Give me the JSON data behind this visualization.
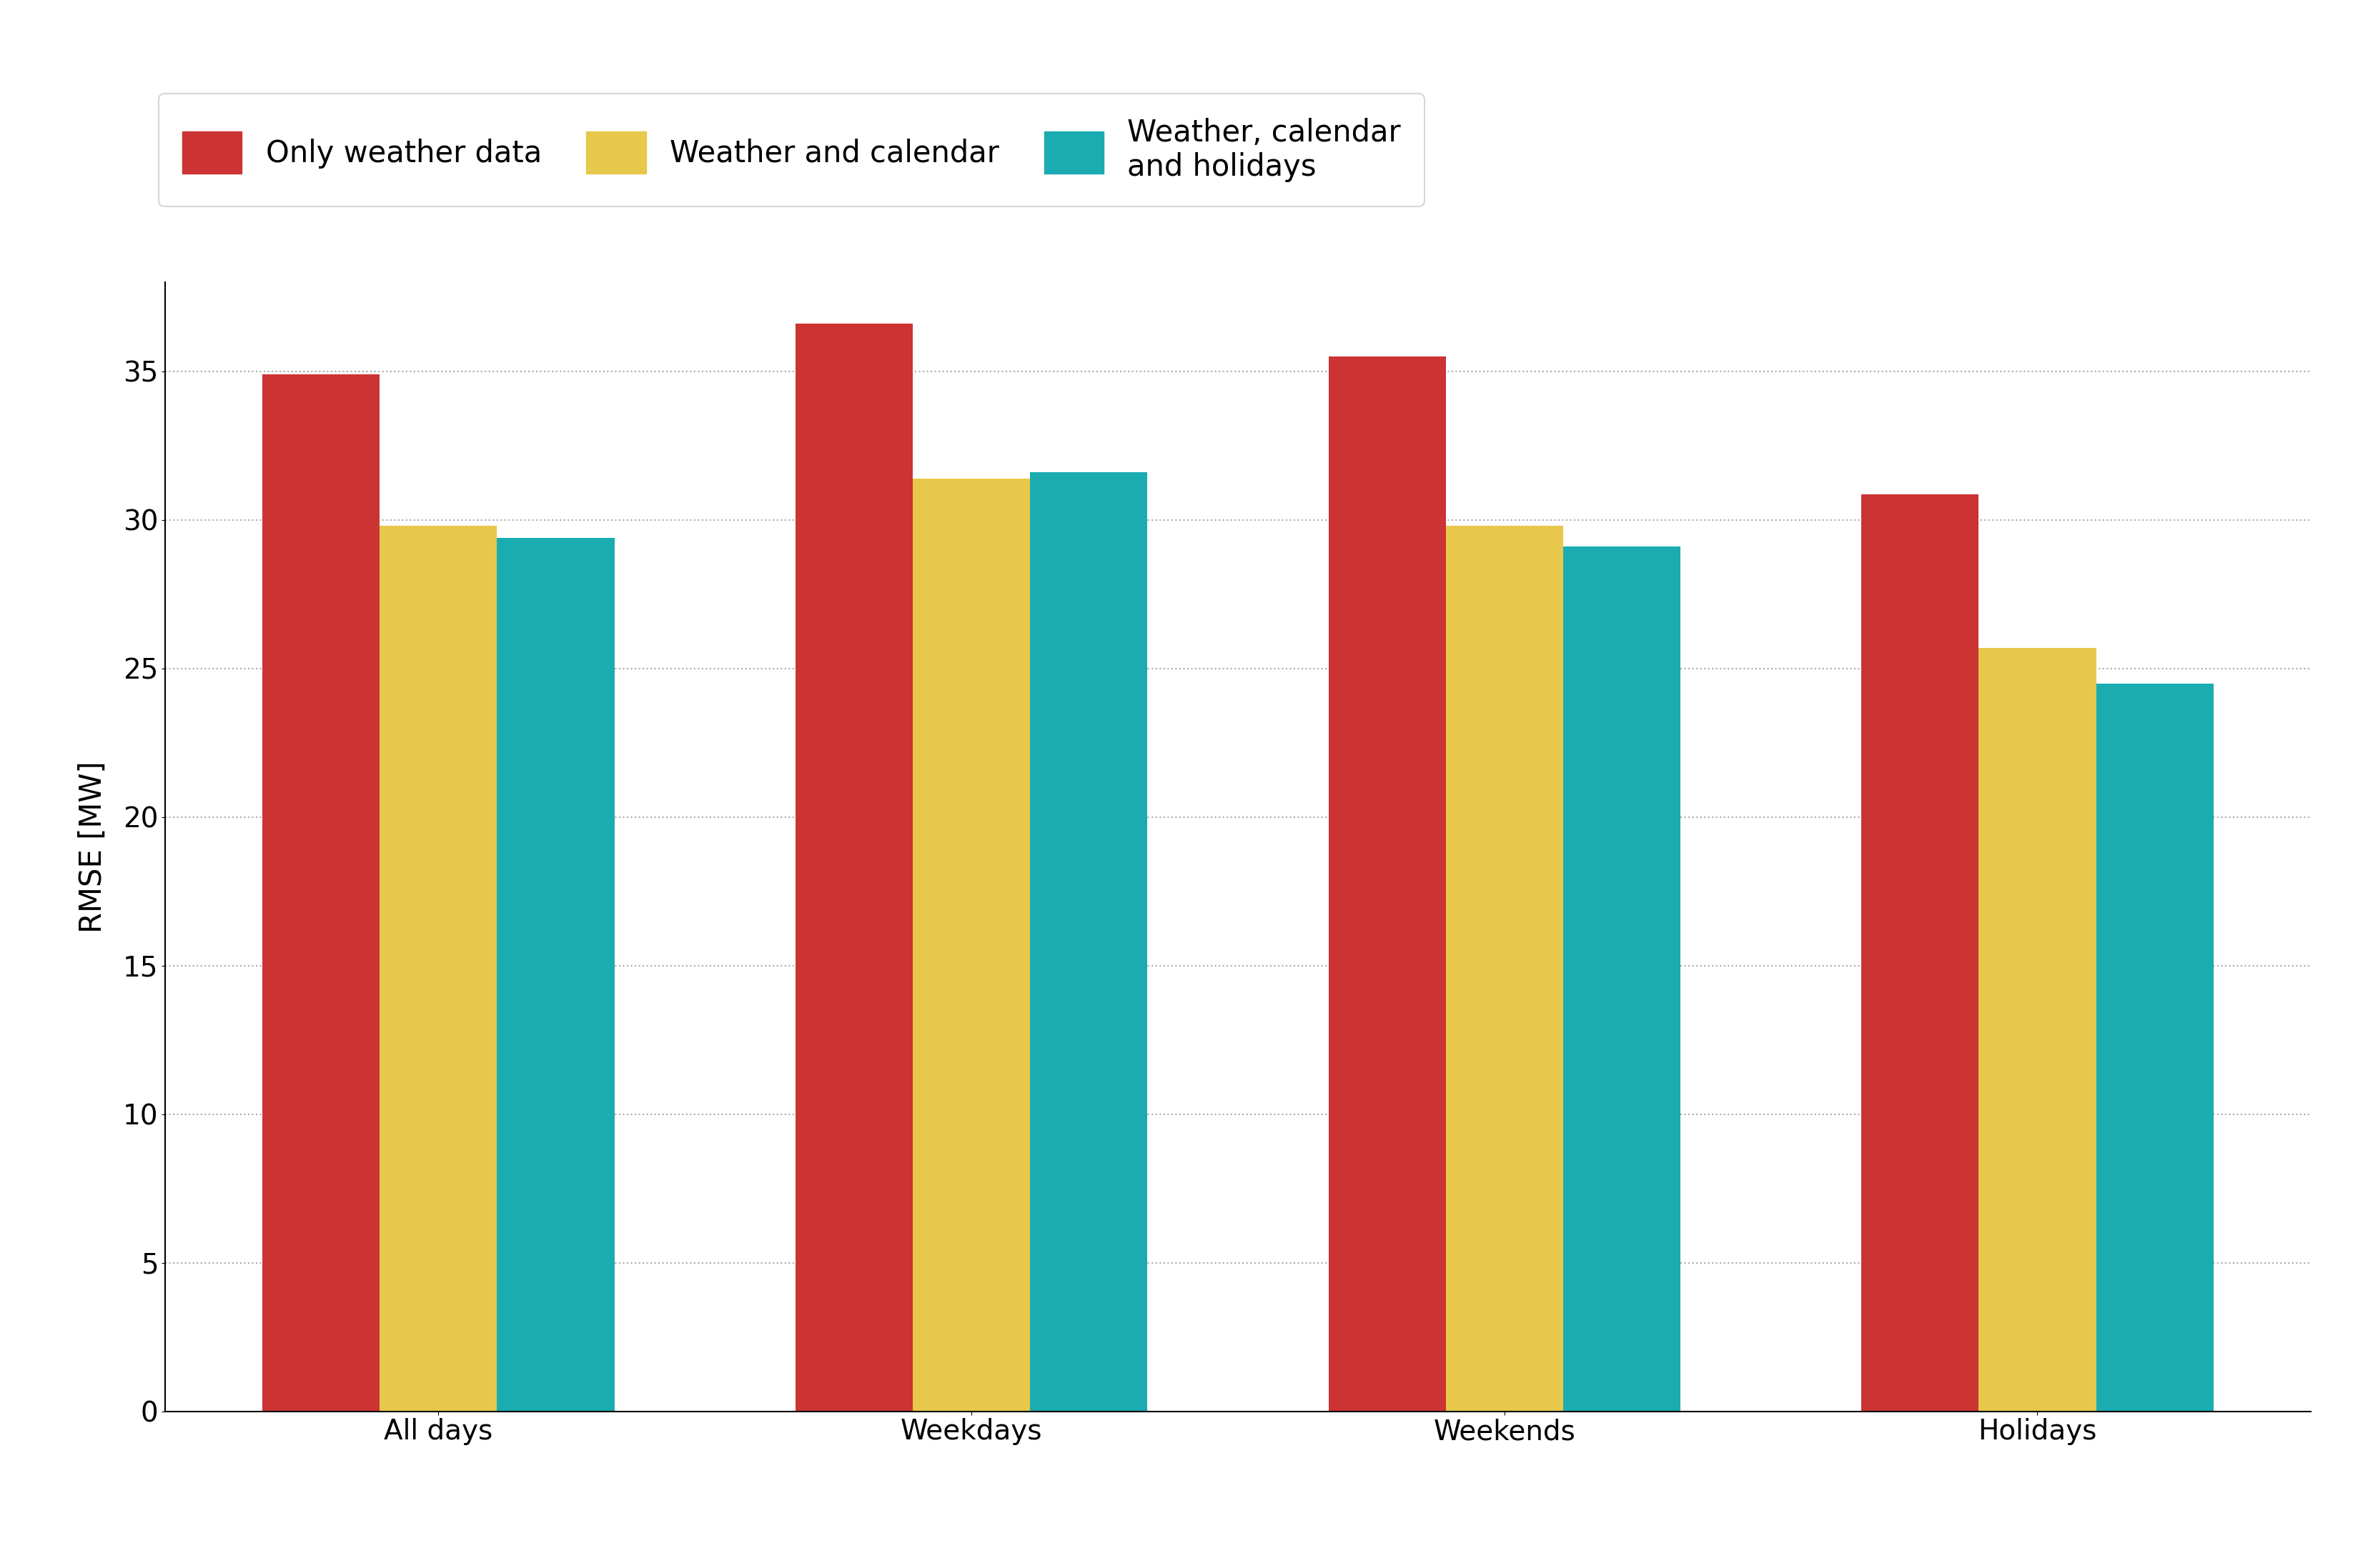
{
  "categories": [
    "All days",
    "Weekdays",
    "Weekends",
    "Holidays"
  ],
  "series": [
    {
      "label": "Only weather data",
      "color": "#CC3333",
      "values": [
        34.9,
        36.6,
        35.5,
        30.85
      ]
    },
    {
      "label": "Weather and calendar",
      "color": "#E8C84A",
      "values": [
        29.8,
        31.4,
        29.8,
        25.7
      ]
    },
    {
      "label": "Weather, calendar\nand holidays",
      "color": "#1AACB0",
      "values": [
        29.4,
        31.6,
        29.1,
        24.5
      ]
    }
  ],
  "ylabel": "RMSE [MW]",
  "ylim": [
    0,
    38
  ],
  "yticks": [
    0,
    5,
    10,
    15,
    20,
    25,
    30,
    35
  ],
  "bar_width": 0.22,
  "background_color": "#ffffff",
  "grid_color": "#aaaaaa",
  "legend_fontsize": 30,
  "axis_fontsize": 30,
  "tick_fontsize": 28
}
